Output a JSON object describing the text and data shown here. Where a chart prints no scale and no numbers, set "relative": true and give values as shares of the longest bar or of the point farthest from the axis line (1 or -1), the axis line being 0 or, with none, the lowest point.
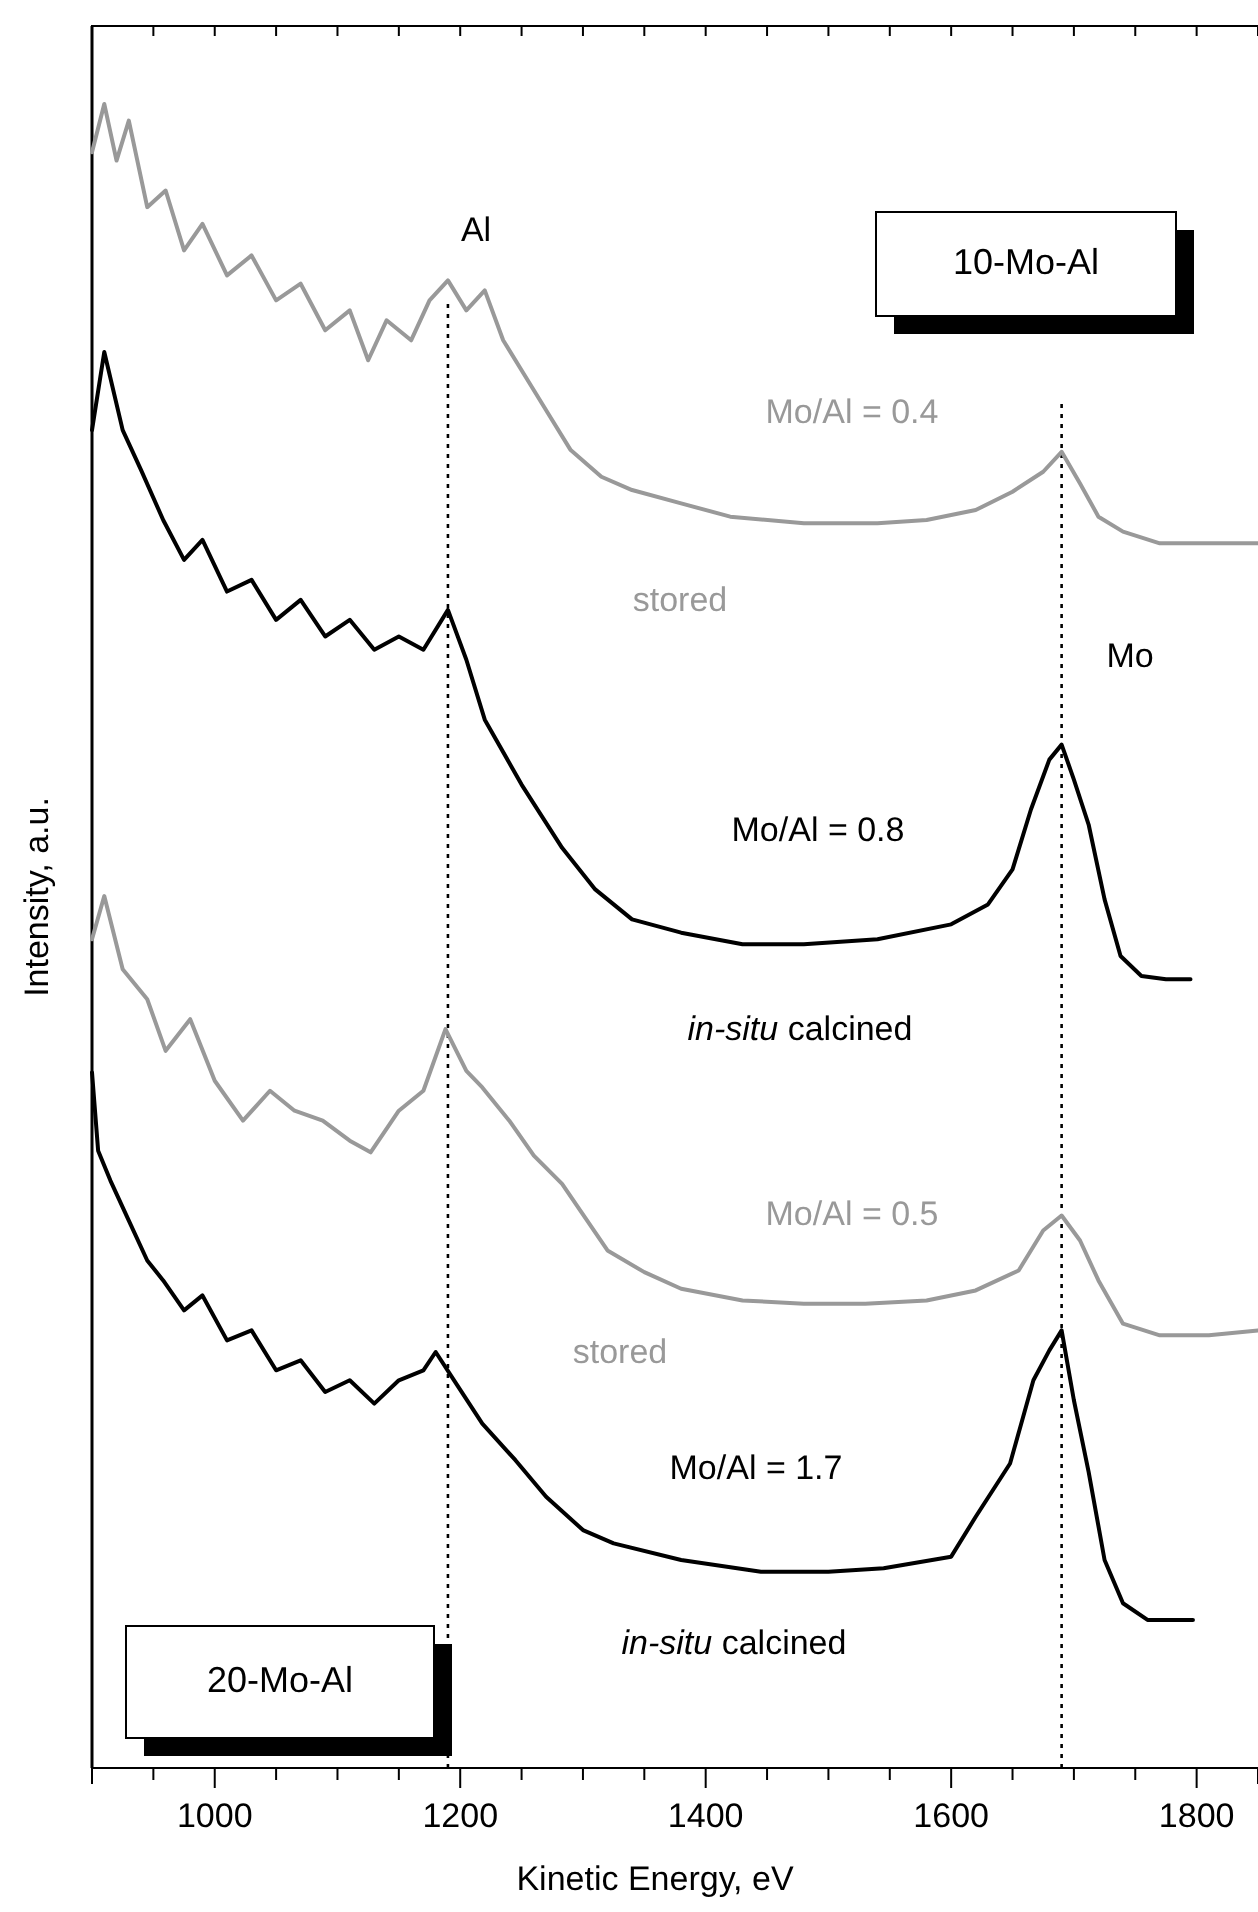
{
  "chart_data": {
    "type": "line",
    "relative": true,
    "xlabel": "Kinetic Energy, eV",
    "ylabel": "Intensity, a.u.",
    "xlim": [
      900,
      1850
    ],
    "xticks": [
      {
        "value": 900,
        "label": null
      },
      {
        "value": 950,
        "label": null
      },
      1000,
      {
        "value": 1050,
        "label": null
      },
      1200,
      {
        "value": 1100,
        "label": null
      },
      {
        "value": 1150,
        "label": null
      },
      {
        "value": 1250,
        "label": null
      },
      {
        "value": 1300,
        "label": null
      },
      {
        "value": 1350,
        "label": null
      },
      1400,
      {
        "value": 1450,
        "label": null
      },
      {
        "value": 1500,
        "label": null
      },
      {
        "value": 1550,
        "label": null
      },
      1600,
      {
        "value": 1650,
        "label": null
      },
      {
        "value": 1700,
        "label": null
      },
      {
        "value": 1750,
        "label": null
      },
      1800,
      {
        "value": 1850,
        "label": null
      }
    ],
    "line_style": "solid",
    "series": [
      {
        "color": "#999999",
        "x": [
          900,
          910,
          920,
          930,
          945,
          960,
          975,
          990,
          1010,
          1030,
          1050,
          1070,
          1090,
          1110,
          1125,
          1140,
          1160,
          1175,
          1190,
          1205,
          1220,
          1235,
          1250,
          1270,
          1290,
          1315,
          1340,
          1380,
          1420,
          1480,
          1540,
          1580,
          1620,
          1650,
          1675,
          1690,
          1705,
          1720,
          1740,
          1770,
          1810,
          1850
        ],
        "values": [
          0.971,
          1.0,
          0.966,
          0.99,
          0.938,
          0.948,
          0.912,
          0.928,
          0.897,
          0.909,
          0.882,
          0.892,
          0.864,
          0.876,
          0.846,
          0.87,
          0.858,
          0.882,
          0.894,
          0.876,
          0.888,
          0.858,
          0.84,
          0.816,
          0.792,
          0.776,
          0.768,
          0.76,
          0.752,
          0.748,
          0.748,
          0.75,
          0.756,
          0.767,
          0.779,
          0.791,
          0.772,
          0.752,
          0.743,
          0.736,
          0.736,
          0.736
        ]
      },
      {
        "color": "#000000",
        "x": [
          900,
          910,
          925,
          940,
          958,
          975,
          990,
          1010,
          1030,
          1050,
          1070,
          1090,
          1110,
          1130,
          1150,
          1170,
          1190,
          1205,
          1220,
          1250,
          1283,
          1310,
          1340,
          1380,
          1430,
          1480,
          1540,
          1600,
          1630,
          1650,
          1665,
          1680,
          1690,
          1700,
          1712,
          1725,
          1738,
          1755,
          1775,
          1795
        ],
        "values": [
          0.804,
          0.851,
          0.804,
          0.78,
          0.75,
          0.726,
          0.738,
          0.707,
          0.714,
          0.69,
          0.702,
          0.68,
          0.69,
          0.672,
          0.68,
          0.672,
          0.696,
          0.666,
          0.63,
          0.591,
          0.553,
          0.528,
          0.51,
          0.502,
          0.495,
          0.495,
          0.498,
          0.507,
          0.519,
          0.54,
          0.576,
          0.606,
          0.615,
          0.594,
          0.567,
          0.522,
          0.488,
          0.476,
          0.474,
          0.474
        ]
      },
      {
        "color": "#999999",
        "x": [
          900,
          910,
          925,
          945,
          960,
          980,
          1000,
          1023,
          1045,
          1065,
          1088,
          1110,
          1127,
          1150,
          1170,
          1188,
          1205,
          1218,
          1240,
          1260,
          1283,
          1320,
          1350,
          1380,
          1430,
          1480,
          1530,
          1580,
          1620,
          1655,
          1675,
          1690,
          1705,
          1720,
          1740,
          1770,
          1810,
          1850
        ],
        "values": [
          0.498,
          0.524,
          0.48,
          0.462,
          0.431,
          0.45,
          0.413,
          0.389,
          0.407,
          0.395,
          0.389,
          0.377,
          0.37,
          0.395,
          0.407,
          0.444,
          0.419,
          0.409,
          0.389,
          0.368,
          0.351,
          0.311,
          0.298,
          0.288,
          0.281,
          0.279,
          0.279,
          0.281,
          0.287,
          0.299,
          0.323,
          0.332,
          0.317,
          0.293,
          0.267,
          0.26,
          0.26,
          0.263
        ]
      },
      {
        "color": "#000000",
        "x": [
          900,
          905,
          915,
          930,
          945,
          958,
          975,
          990,
          1010,
          1030,
          1050,
          1070,
          1090,
          1110,
          1130,
          1150,
          1170,
          1180,
          1195,
          1218,
          1245,
          1270,
          1300,
          1325,
          1380,
          1445,
          1500,
          1545,
          1600,
          1620,
          1648,
          1667,
          1680,
          1690,
          1700,
          1712,
          1725,
          1740,
          1760,
          1797
        ],
        "values": [
          0.418,
          0.371,
          0.353,
          0.329,
          0.305,
          0.293,
          0.275,
          0.284,
          0.257,
          0.263,
          0.239,
          0.245,
          0.226,
          0.233,
          0.219,
          0.233,
          0.239,
          0.25,
          0.233,
          0.207,
          0.185,
          0.163,
          0.143,
          0.135,
          0.125,
          0.118,
          0.118,
          0.12,
          0.127,
          0.151,
          0.183,
          0.233,
          0.251,
          0.263,
          0.221,
          0.178,
          0.125,
          0.099,
          0.089,
          0.089
        ]
      }
    ],
    "ref_lines": [
      {
        "axis": "x",
        "value": 1190,
        "line_style": "dotted",
        "color": "#000000",
        "label": "Al"
      },
      {
        "axis": "x",
        "value": 1690,
        "line_style": "dotted",
        "color": "#000000",
        "label": "Mo"
      }
    ],
    "annotations": [
      "Mo/Al = 0.4",
      "stored",
      "Mo/Al = 0.8",
      "in-situ calcined",
      "Mo/Al = 0.5",
      "stored",
      "Mo/Al = 1.7",
      "in-situ calcined",
      "10-Mo-Al",
      "20-Mo-Al"
    ]
  }
}
